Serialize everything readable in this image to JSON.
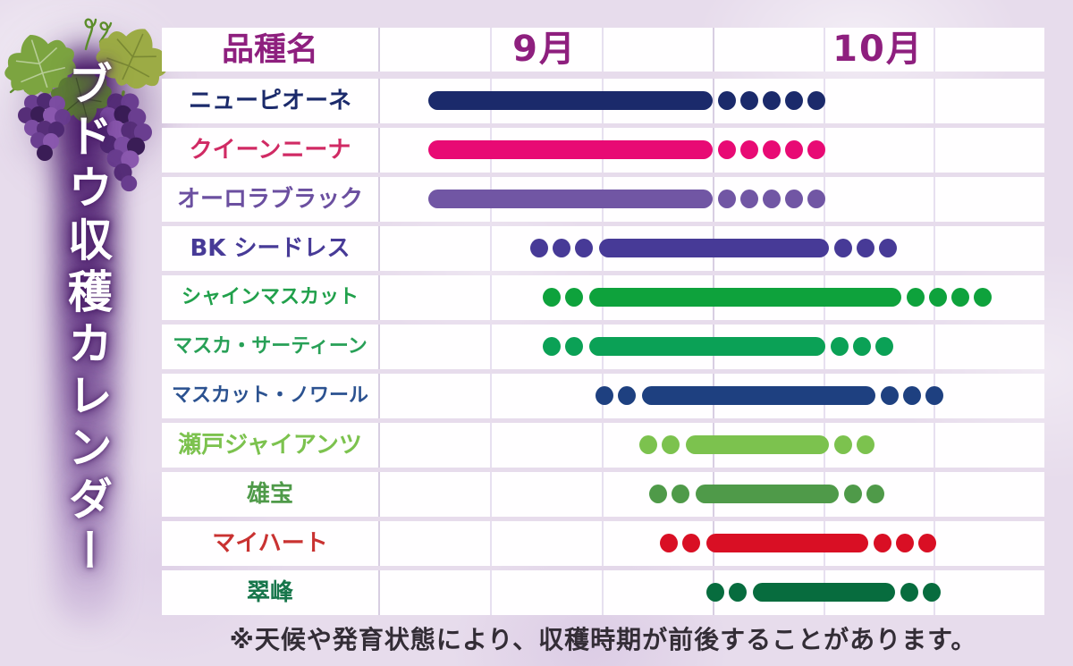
{
  "page": {
    "title_vertical": "ブドウ収穫カレンダー",
    "footnote": "※天候や発育状態により、収穫時期が前後することがあります。",
    "background_color": "#e7dcec",
    "header_text_color": "#8e1f7e",
    "cell_color": "#fffeff",
    "grid_line_color": "#d8cee2"
  },
  "table": {
    "variety_header": "品種名",
    "month_headers": [
      "9月",
      "10月"
    ]
  },
  "chart_data": {
    "type": "gantt",
    "title": "ブドウ収穫カレンダー",
    "x_axis": {
      "labels": [
        "9月",
        "10月"
      ],
      "range": [
        9.0,
        11.0
      ],
      "scale_note": "9.0 = Sep 1, 10.0 = Oct 1, 11.0 = end of Oct; solid bar = main harvest period, dots = shoulder period"
    },
    "rows": [
      {
        "label": "ニューピオーネ",
        "color": "#1b2a6b",
        "label_color": "#1b2a6b",
        "dots_before": 0,
        "bar_start": 9.15,
        "bar_end": 10.0,
        "dots_after": 5
      },
      {
        "label": "クイーンニーナ",
        "color": "#e80a74",
        "label_color": "#d02a64",
        "dots_before": 0,
        "bar_start": 9.15,
        "bar_end": 10.0,
        "dots_after": 5
      },
      {
        "label": "オーロラブラック",
        "color": "#7156a4",
        "label_color": "#6b4fa0",
        "dots_before": 0,
        "bar_start": 9.15,
        "bar_end": 10.0,
        "dots_after": 5
      },
      {
        "label": "BK シードレス",
        "color": "#473a97",
        "label_color": "#473a97",
        "dots_before": 3,
        "bar_start": 9.66,
        "bar_end": 10.35,
        "dots_after": 3
      },
      {
        "label": "シャインマスカット",
        "color": "#0ea23c",
        "label_color": "#21a04b",
        "dots_before": 2,
        "bar_start": 9.63,
        "bar_end": 10.57,
        "dots_after": 4
      },
      {
        "label": "マスカ・サーティーン",
        "color": "#0ba156",
        "label_color": "#28a057",
        "dots_before": 2,
        "bar_start": 9.63,
        "bar_end": 10.34,
        "dots_after": 3
      },
      {
        "label": "マスカット・ノワール",
        "color": "#1e4080",
        "label_color": "#2b5190",
        "dots_before": 2,
        "bar_start": 9.79,
        "bar_end": 10.49,
        "dots_after": 3
      },
      {
        "label": "瀬戸ジャイアンツ",
        "color": "#7cc24e",
        "label_color": "#7cc24e",
        "dots_before": 2,
        "bar_start": 9.92,
        "bar_end": 10.35,
        "dots_after": 2
      },
      {
        "label": "雄宝",
        "color": "#4f9a49",
        "label_color": "#4f9a49",
        "dots_before": 2,
        "bar_start": 9.95,
        "bar_end": 10.38,
        "dots_after": 2
      },
      {
        "label": "マイハート",
        "color": "#d90f24",
        "label_color": "#c93231",
        "dots_before": 2,
        "bar_start": 9.98,
        "bar_end": 10.47,
        "dots_after": 3
      },
      {
        "label": "翠峰",
        "color": "#076c3e",
        "label_color": "#17764b",
        "dots_before": 2,
        "bar_start": 10.12,
        "bar_end": 10.55,
        "dots_after": 2
      }
    ]
  }
}
